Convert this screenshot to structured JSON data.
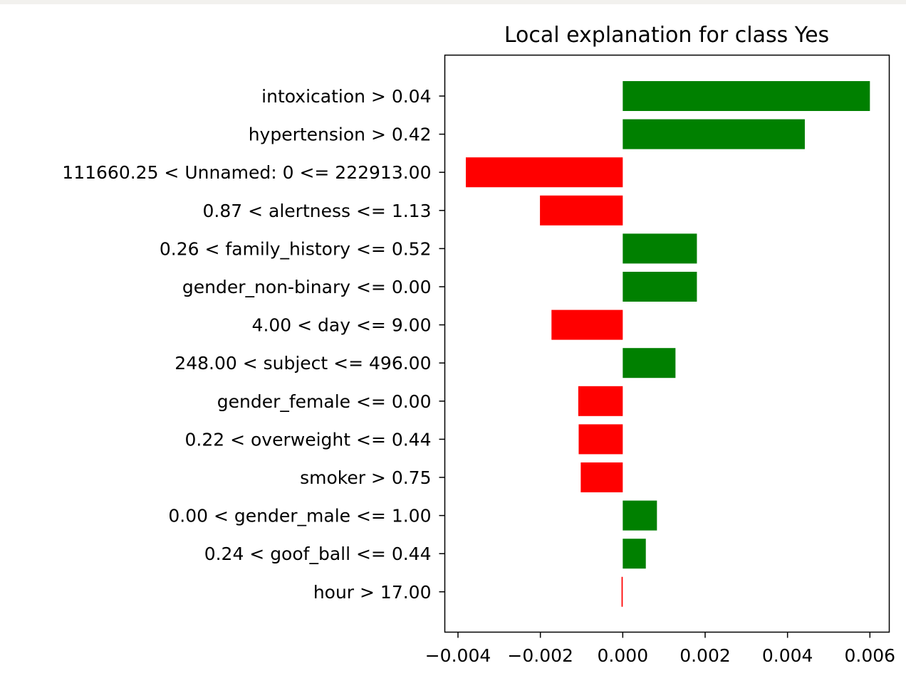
{
  "chart_data": {
    "type": "bar",
    "orientation": "horizontal",
    "title": "Local explanation for class Yes",
    "xlabel": "",
    "ylabel": "",
    "xlim": [
      -0.00432,
      0.00647
    ],
    "xticks": [
      -0.004,
      -0.002,
      0.0,
      0.002,
      0.004,
      0.006
    ],
    "xtick_labels": [
      "−0.004",
      "−0.002",
      "0.000",
      "0.002",
      "0.004",
      "0.006"
    ],
    "grid": false,
    "legend": "none",
    "positive_color": "#008000",
    "negative_color": "#ff0000",
    "categories": [
      "intoxication > 0.04",
      "hypertension > 0.42",
      "111660.25 < Unnamed: 0 <= 222913.00",
      "0.87 < alertness <= 1.13",
      "0.26 < family_history <= 0.52",
      "gender_non-binary <= 0.00",
      "4.00 < day <= 9.00",
      "248.00 < subject <= 496.00",
      "gender_female <= 0.00",
      "0.22 < overweight <= 0.44",
      "smoker > 0.75",
      "0.00 < gender_male <= 1.00",
      "0.24 < goof_ball <= 0.44",
      "hour > 17.00"
    ],
    "values": [
      0.006,
      0.00442,
      -0.00381,
      -0.00201,
      0.0018,
      0.0018,
      -0.00173,
      0.00128,
      -0.00108,
      -0.00107,
      -0.00102,
      0.00083,
      0.00056,
      -3e-05
    ]
  }
}
